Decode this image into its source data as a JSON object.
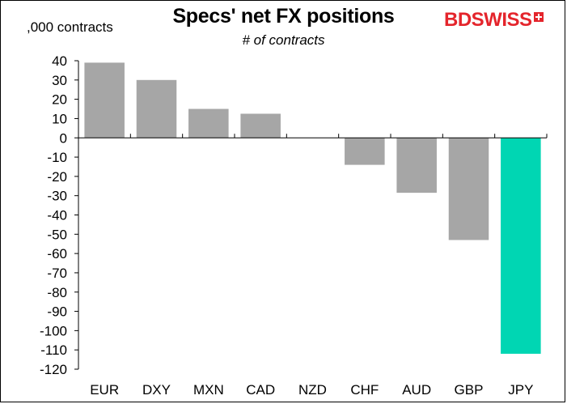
{
  "chart_data": {
    "type": "bar",
    "title": "Specs' net FX positions",
    "subtitle": "# of contracts",
    "ylabel": ",000 contracts",
    "xlabel": "",
    "categories": [
      "EUR",
      "DXY",
      "MXN",
      "CAD",
      "NZD",
      "CHF",
      "AUD",
      "GBP",
      "JPY"
    ],
    "values": [
      39,
      30,
      15,
      12.5,
      0,
      -14,
      -28.5,
      -53,
      -112
    ],
    "ylim": [
      -120,
      40
    ],
    "yticks": [
      40,
      30,
      20,
      10,
      0,
      -10,
      -20,
      -30,
      -40,
      -50,
      -60,
      -70,
      -80,
      -90,
      -100,
      -110,
      -120
    ],
    "grid": false,
    "bar_color": "#a6a6a6",
    "highlight_category": "JPY",
    "highlight_color": "#00d6b3"
  },
  "logo": {
    "text": "BDSWISS",
    "brand_color": "#e4252c",
    "icon": "swiss-flag-icon"
  }
}
